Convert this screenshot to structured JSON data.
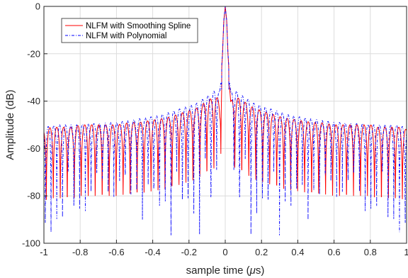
{
  "chart_data": {
    "type": "line",
    "title": "",
    "xlabel_main": "sample time (",
    "xlabel_mu": "μ",
    "xlabel_unit": "s)",
    "ylabel": "Amplitude (dB)",
    "xlim": [
      -1,
      1
    ],
    "ylim": [
      -100,
      0
    ],
    "xticks": [
      -1,
      -0.8,
      -0.6,
      -0.4,
      -0.2,
      0,
      0.2,
      0.4,
      0.6,
      0.8,
      1
    ],
    "xtick_labels": [
      "-1",
      "-0.8",
      "-0.6",
      "-0.4",
      "-0.2",
      "0",
      "0.2",
      "0.4",
      "0.6",
      "0.8",
      "1"
    ],
    "yticks": [
      0,
      -20,
      -40,
      -60,
      -80,
      -100
    ],
    "ytick_labels": [
      "0",
      "-20",
      "-40",
      "-60",
      "-80",
      "-100"
    ],
    "grid": true,
    "legend_position": "top-left",
    "series": [
      {
        "name": "NLFM with Smoothing Spline",
        "color": "#ff0000",
        "style": "solid",
        "x": [
          -1,
          -0.96,
          -0.92,
          -0.88,
          -0.84,
          -0.8,
          -0.76,
          -0.72,
          -0.68,
          -0.64,
          -0.6,
          -0.56,
          -0.52,
          -0.48,
          -0.44,
          -0.4,
          -0.36,
          -0.32,
          -0.28,
          -0.24,
          -0.2,
          -0.16,
          -0.12,
          -0.08,
          -0.05,
          -0.03,
          -0.015,
          -0.008,
          0,
          0.008,
          0.015,
          0.03,
          0.05,
          0.08,
          0.12,
          0.16,
          0.2,
          0.24,
          0.28,
          0.32,
          0.36,
          0.4,
          0.44,
          0.48,
          0.52,
          0.56,
          0.6,
          0.64,
          0.68,
          0.72,
          0.76,
          0.8,
          0.84,
          0.88,
          0.92,
          0.96,
          1
        ],
        "y": [
          -52,
          -51,
          -51,
          -51,
          -51,
          -50,
          -50,
          -50,
          -50,
          -50,
          -50,
          -49.5,
          -49,
          -49,
          -48.5,
          -48,
          -47.5,
          -47,
          -46,
          -45,
          -44,
          -43,
          -41,
          -39,
          -38,
          -40,
          -20,
          -6,
          0,
          -6,
          -20,
          -40,
          -38,
          -39,
          -41,
          -43,
          -44,
          -45,
          -46,
          -47,
          -47.5,
          -48,
          -48.5,
          -49,
          -49,
          -49.5,
          -50,
          -50,
          -50,
          -50,
          -50,
          -50,
          -51,
          -51,
          -51,
          -51,
          -52
        ]
      },
      {
        "name": "NLFM with Polynomial",
        "color": "#0000ff",
        "style": "dash-dot",
        "x": [
          -1,
          -0.96,
          -0.92,
          -0.88,
          -0.84,
          -0.8,
          -0.76,
          -0.72,
          -0.68,
          -0.64,
          -0.6,
          -0.56,
          -0.52,
          -0.48,
          -0.44,
          -0.4,
          -0.36,
          -0.32,
          -0.28,
          -0.24,
          -0.2,
          -0.16,
          -0.12,
          -0.08,
          -0.05,
          -0.03,
          -0.015,
          -0.008,
          0,
          0.008,
          0.015,
          0.03,
          0.05,
          0.08,
          0.12,
          0.16,
          0.2,
          0.24,
          0.28,
          0.32,
          0.36,
          0.4,
          0.44,
          0.48,
          0.52,
          0.56,
          0.6,
          0.64,
          0.68,
          0.72,
          0.76,
          0.8,
          0.84,
          0.88,
          0.92,
          0.96,
          1
        ],
        "y": [
          -51,
          -50.5,
          -50,
          -50,
          -50,
          -50,
          -49.5,
          -49.5,
          -49.5,
          -49,
          -49,
          -48.5,
          -48,
          -47.5,
          -47,
          -46.5,
          -46,
          -45,
          -44,
          -43,
          -42,
          -41,
          -39,
          -37,
          -35,
          -36,
          -20,
          -6,
          0,
          -6,
          -20,
          -36,
          -35,
          -37,
          -39,
          -41,
          -42,
          -43,
          -44,
          -45,
          -46,
          -46.5,
          -47,
          -47.5,
          -48,
          -48.5,
          -49,
          -49,
          -49.5,
          -49.5,
          -49.5,
          -50,
          -50,
          -50,
          -50,
          -50.5,
          -51
        ]
      }
    ]
  }
}
